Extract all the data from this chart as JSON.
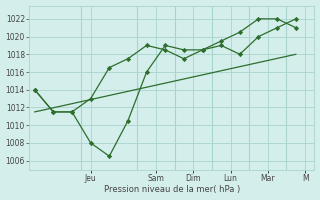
{
  "background_color": "#d4eeeb",
  "grid_color": "#a8d4cf",
  "line_color": "#2d6e2d",
  "xlabel": "Pression niveau de la mer( hPa )",
  "ylim": [
    1005,
    1023.5
  ],
  "yticks": [
    1006,
    1008,
    1010,
    1012,
    1014,
    1016,
    1018,
    1020,
    1022
  ],
  "day_labels": [
    "Jeu",
    "Sam",
    "Dim",
    "Lun",
    "Mar",
    "M"
  ],
  "day_positions": [
    3.0,
    6.5,
    8.5,
    10.5,
    12.5,
    14.5
  ],
  "xlim": [
    -0.3,
    15.0
  ],
  "series1_x": [
    0,
    1,
    2,
    3,
    4,
    5,
    6,
    7,
    8,
    9,
    10,
    11,
    12,
    13,
    14
  ],
  "series1_y": [
    1014,
    1011.5,
    1011.5,
    1008,
    1006.5,
    1010.5,
    1016,
    1019,
    1018.5,
    1018.5,
    1019,
    1018,
    1020,
    1021,
    1022
  ],
  "series2_x": [
    0,
    1,
    2,
    3,
    4,
    5,
    6,
    7,
    8,
    9,
    10,
    11,
    12,
    13,
    14
  ],
  "series2_y": [
    1014,
    1011.5,
    1011.5,
    1013,
    1016.5,
    1017.5,
    1019,
    1018.5,
    1017.5,
    1018.5,
    1019.5,
    1020.5,
    1022,
    1022,
    1021
  ],
  "series3_x": [
    0,
    14
  ],
  "series3_y": [
    1011.5,
    1018
  ],
  "vline_positions": [
    2.5,
    5.5,
    7.5,
    9.5,
    11.5,
    13.5
  ],
  "tick_label_color": "#444444",
  "spine_color": "#a8d4cf"
}
